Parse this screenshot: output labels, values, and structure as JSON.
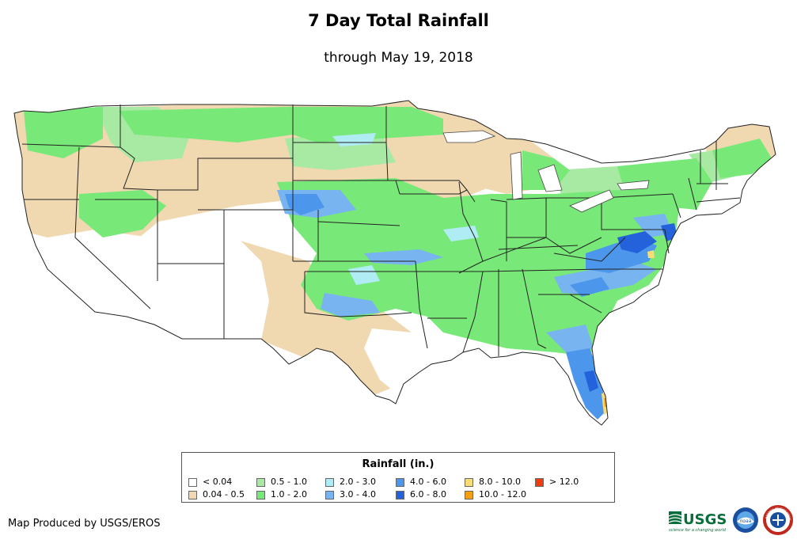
{
  "header": {
    "title": "7 Day Total Rainfall",
    "subtitle": "through May 19, 2018"
  },
  "legend": {
    "title": "Rainfall (in.)",
    "items": [
      {
        "label": "< 0.04",
        "color": "#ffffff"
      },
      {
        "label": "0.04 - 0.5",
        "color": "#f0d8b0"
      },
      {
        "label": "0.5 - 1.0",
        "color": "#a8eaa4"
      },
      {
        "label": "1.0 - 2.0",
        "color": "#78e878"
      },
      {
        "label": "2.0 - 3.0",
        "color": "#b0ecf4"
      },
      {
        "label": "3.0 - 4.0",
        "color": "#78b4f0"
      },
      {
        "label": "4.0 - 6.0",
        "color": "#4c96ec"
      },
      {
        "label": "6.0 - 8.0",
        "color": "#2462dc"
      },
      {
        "label": "8.0 - 10.0",
        "color": "#f8dc78"
      },
      {
        "label": "10.0 - 12.0",
        "color": "#f4a010"
      },
      {
        "label": "> 12.0",
        "color": "#f03c10"
      }
    ]
  },
  "footer": {
    "credit": "Map Produced by USGS/EROS",
    "logos": {
      "usgs_text": "USGS",
      "usgs_tagline": "science for a changing world",
      "noaa_text": "noaa",
      "nws_text": "NATIONAL WEATHER SERVICE"
    }
  }
}
